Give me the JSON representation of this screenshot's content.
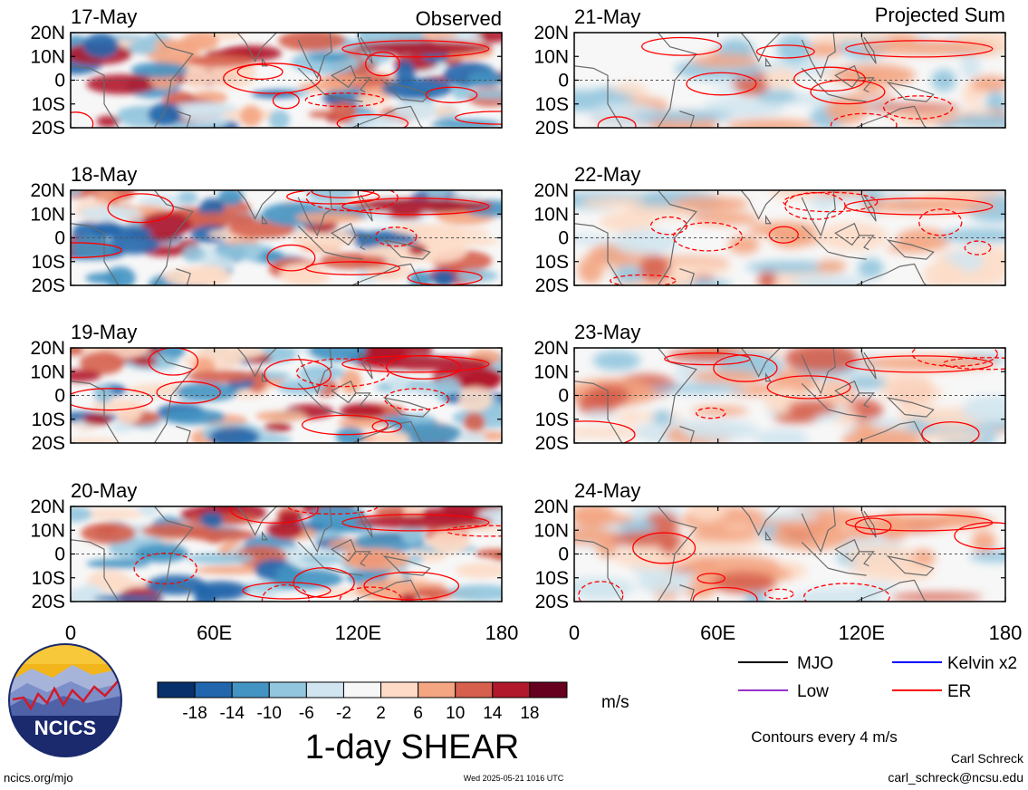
{
  "figure": {
    "column_titles": {
      "left": "Observed",
      "right": "Projected Sum"
    },
    "main_title": "1-day SHEAR",
    "unit": "m/s",
    "contour_note": "Contours every 4 m/s",
    "footer_left": "ncics.org/mjo",
    "footer_center": "Wed 2025-05-21 1016 UTC",
    "author_name": "Carl Schreck",
    "author_email": "carl_schreck@ncsu.edu",
    "logo_text": "NCICS"
  },
  "chart_data": {
    "type": "heatmap",
    "description_variable": "1-day SHEAR",
    "unit": "m/s",
    "x_axis": {
      "range": [
        0,
        180
      ],
      "ticks": [
        0,
        60,
        120,
        180
      ],
      "tick_labels": [
        "0",
        "60E",
        "120E",
        "180"
      ]
    },
    "y_axis": {
      "range": [
        -20,
        20
      ],
      "ticks": [
        20,
        10,
        0,
        -10,
        -20
      ],
      "tick_labels": [
        "20N",
        "10N",
        "0",
        "10S",
        "20S"
      ]
    },
    "panels": [
      {
        "column": "Observed",
        "date": "17-May"
      },
      {
        "column": "Observed",
        "date": "18-May"
      },
      {
        "column": "Observed",
        "date": "19-May"
      },
      {
        "column": "Observed",
        "date": "20-May"
      },
      {
        "column": "Projected Sum",
        "date": "21-May"
      },
      {
        "column": "Projected Sum",
        "date": "22-May"
      },
      {
        "column": "Projected Sum",
        "date": "23-May"
      },
      {
        "column": "Projected Sum",
        "date": "24-May"
      }
    ],
    "colorbar": {
      "labels": [
        "-18",
        "-14",
        "-10",
        "-6",
        "-2",
        "2",
        "6",
        "10",
        "14",
        "18"
      ],
      "colors": [
        "#08306b",
        "#2166ac",
        "#4393c3",
        "#92c5de",
        "#d1e5f0",
        "#f7f7f7",
        "#fddbc7",
        "#f4a582",
        "#d6604d",
        "#b2182b",
        "#67001f"
      ]
    },
    "legend": [
      {
        "label": "MJO",
        "color": "#000000",
        "style": "solid"
      },
      {
        "label": "Kelvin x2",
        "color": "#0000ff",
        "style": "solid"
      },
      {
        "label": "Low",
        "color": "#9932cc",
        "style": "solid"
      },
      {
        "label": "ER",
        "color": "#ff0000",
        "style": "solid"
      }
    ],
    "contour_interval": 4
  }
}
